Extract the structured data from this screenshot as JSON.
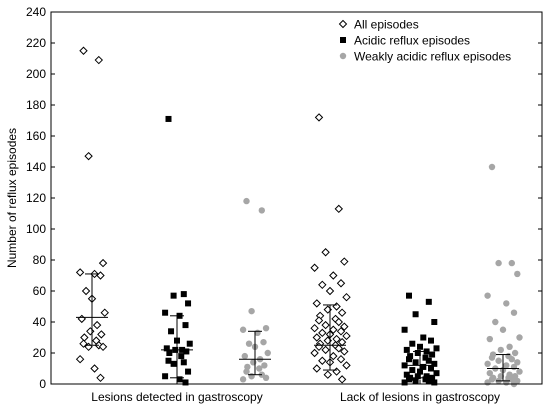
{
  "chart_data": {
    "type": "scatter",
    "title": "",
    "ylabel": "Number of reflux episodes",
    "xlabel": "",
    "ylim": [
      0,
      240
    ],
    "yticks": [
      0,
      20,
      40,
      60,
      80,
      100,
      120,
      140,
      160,
      180,
      200,
      220,
      240
    ],
    "grid": false,
    "legend_position": "top-right",
    "categories": [
      "Lesions detected in gastroscopy",
      "Lack of lesions in gastroscopy"
    ],
    "series": [
      {
        "name": "All episodes",
        "marker": "diamond",
        "color": "#000000",
        "groups": [
          {
            "category": "Lesions detected in gastroscopy",
            "values": [
              215,
              209,
              147,
              78,
              72,
              71,
              70,
              60,
              55,
              46,
              42,
              38,
              34,
              32,
              30,
              28,
              26,
              25,
              24,
              24,
              16,
              10,
              4
            ],
            "median": 43,
            "q_low": 25,
            "q_high": 71
          },
          {
            "category": "Lack of lesions in gastroscopy",
            "values": [
              172,
              113,
              85,
              79,
              75,
              70,
              65,
              64,
              60,
              56,
              52,
              50,
              48,
              46,
              44,
              42,
              41,
              40,
              38,
              37,
              36,
              35,
              34,
              33,
              32,
              31,
              30,
              29,
              28,
              27,
              26,
              25,
              24,
              23,
              22,
              21,
              20,
              18,
              16,
              15,
              14,
              12,
              10,
              8,
              6,
              3
            ],
            "median": 25,
            "q_low": 9,
            "q_high": 51
          }
        ]
      },
      {
        "name": "Acidic reflux episodes",
        "marker": "square",
        "color": "#000000",
        "groups": [
          {
            "category": "Lesions detected in gastroscopy",
            "values": [
              171,
              58,
              57,
              52,
              46,
              44,
              38,
              34,
              28,
              26,
              23,
              22,
              22,
              21,
              20,
              18,
              15,
              14,
              13,
              8,
              5,
              3,
              1
            ],
            "median": 22,
            "q_low": 4,
            "q_high": 44
          },
          {
            "category": "Lack of lesions in gastroscopy",
            "values": [
              57,
              53,
              45,
              40,
              35,
              30,
              28,
              26,
              24,
              23,
              22,
              21,
              20,
              19,
              18,
              17,
              16,
              15,
              14,
              13,
              12,
              11,
              10,
              9,
              8,
              7,
              6,
              5,
              5,
              4,
              4,
              3,
              3,
              2,
              2,
              1,
              1
            ],
            "median": 12,
            "q_low": 4,
            "q_high": 21
          }
        ]
      },
      {
        "name": "Weakly acidic reflux episodes",
        "marker": "circle",
        "color": "#a6a6a6",
        "groups": [
          {
            "category": "Lesions detected in gastroscopy",
            "values": [
              118,
              112,
              47,
              36,
              35,
              33,
              27,
              26,
              24,
              20,
              18,
              16,
              14,
              12,
              11,
              10,
              8,
              6,
              5,
              4,
              3
            ],
            "median": 16,
            "q_low": 6,
            "q_high": 34
          },
          {
            "category": "Lack of lesions in gastroscopy",
            "values": [
              140,
              78,
              78,
              71,
              57,
              52,
              46,
              40,
              35,
              30,
              29,
              24,
              22,
              20,
              19,
              18,
              17,
              16,
              15,
              14,
              13,
              12,
              11,
              10,
              9,
              8,
              7,
              6,
              5,
              5,
              4,
              4,
              3,
              3,
              2,
              2,
              1,
              1,
              0
            ],
            "median": 10,
            "q_low": 2,
            "q_high": 19
          }
        ]
      }
    ]
  }
}
